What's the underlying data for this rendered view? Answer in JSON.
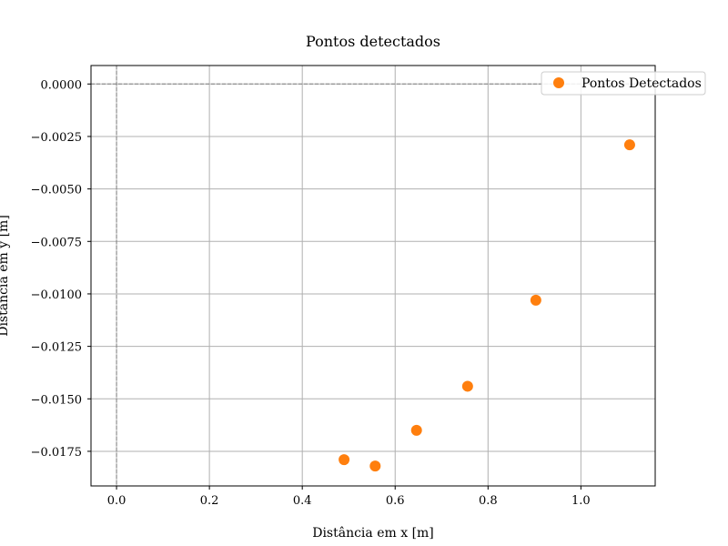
{
  "chart_data": {
    "type": "scatter",
    "title": "Pontos detectados",
    "xlabel": "Distância em x [m]",
    "ylabel": "Distância em y [m]",
    "xlim": [
      -0.055,
      1.16
    ],
    "ylim": [
      -0.01915,
      0.00088
    ],
    "x_ticks": [
      0.0,
      0.2,
      0.4,
      0.6,
      0.8,
      1.0
    ],
    "x_tick_labels": [
      "0.0",
      "0.2",
      "0.4",
      "0.6",
      "0.8",
      "1.0"
    ],
    "y_ticks": [
      0.0,
      -0.0025,
      -0.005,
      -0.0075,
      -0.01,
      -0.0125,
      -0.015,
      -0.0175
    ],
    "y_tick_labels": [
      "0.0000",
      "−0.0025",
      "−0.0050",
      "−0.0075",
      "−0.0100",
      "−0.0125",
      "−0.0150",
      "−0.0175"
    ],
    "grid": true,
    "reference_lines": {
      "x": 0,
      "y": 0,
      "style": "dashed",
      "color": "#808080"
    },
    "legend_position": "top-right",
    "series": [
      {
        "name": "Pontos Detectados",
        "color": "#ff7f0e",
        "marker": "circle",
        "points": [
          {
            "x": 0.49,
            "y": -0.0179
          },
          {
            "x": 0.557,
            "y": -0.0182
          },
          {
            "x": 0.646,
            "y": -0.0165
          },
          {
            "x": 0.756,
            "y": -0.0144
          },
          {
            "x": 0.903,
            "y": -0.0103
          },
          {
            "x": 1.105,
            "y": -0.0029
          }
        ]
      }
    ]
  }
}
